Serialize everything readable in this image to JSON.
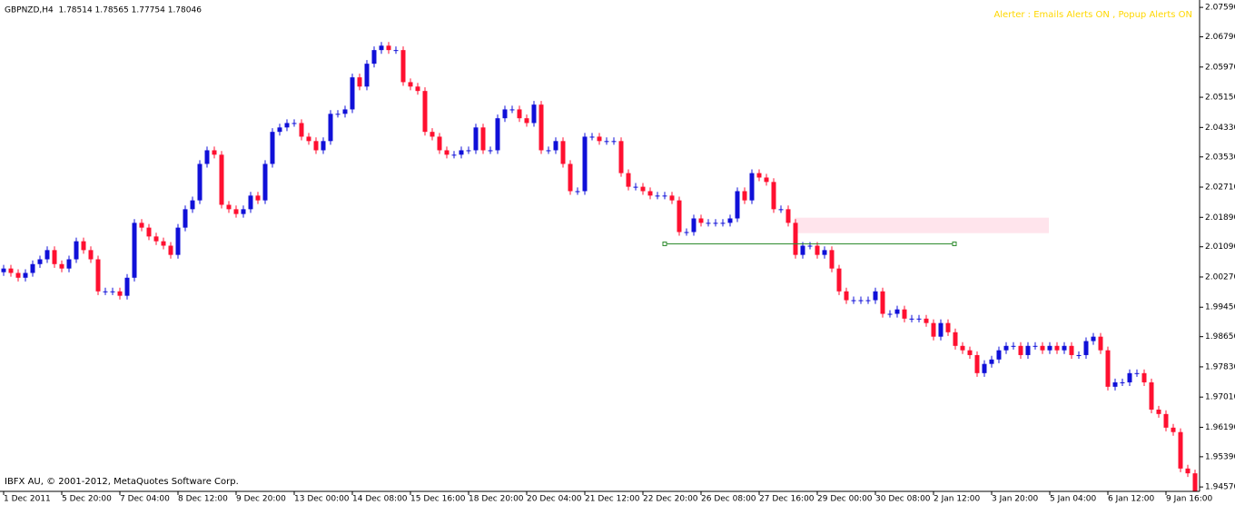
{
  "chart_data": {
    "type": "candlestick",
    "title": "GBPNZD,H4  1.78514 1.78565 1.77754 1.78046",
    "alert_text": "Alerter : Emails Alerts ON , Popup Alerts ON",
    "footer": "IBFX AU, © 2001-2012, MetaQuotes Software Corp.",
    "up_color": "#1010d8",
    "down_color": "#ff1030",
    "ylim": [
      1.9445,
      2.0779
    ],
    "yticks": [
      {
        "value": 2.0759,
        "label": "2.07590"
      },
      {
        "value": 2.0679,
        "label": "2.06790"
      },
      {
        "value": 2.0597,
        "label": "2.05970"
      },
      {
        "value": 2.0515,
        "label": "2.05150"
      },
      {
        "value": 2.0433,
        "label": "2.04330"
      },
      {
        "value": 2.0353,
        "label": "2.03530"
      },
      {
        "value": 2.0271,
        "label": "2.02710"
      },
      {
        "value": 2.0189,
        "label": "2.01890"
      },
      {
        "value": 2.0109,
        "label": "2.01090"
      },
      {
        "value": 2.0027,
        "label": "2.00270"
      },
      {
        "value": 1.9945,
        "label": "1.99450"
      },
      {
        "value": 1.9865,
        "label": "1.98650"
      },
      {
        "value": 1.9783,
        "label": "1.97830"
      },
      {
        "value": 1.9701,
        "label": "1.97010"
      },
      {
        "value": 1.9619,
        "label": "1.96190"
      },
      {
        "value": 1.9539,
        "label": "1.95390"
      },
      {
        "value": 1.9457,
        "label": "1.94570"
      }
    ],
    "categories": [
      "1 Dec 2011",
      null,
      null,
      null,
      null,
      null,
      null,
      null,
      "5 Dec 20:00",
      null,
      null,
      null,
      null,
      null,
      null,
      null,
      "7 Dec 04:00",
      null,
      null,
      null,
      null,
      null,
      null,
      null,
      "8 Dec 12:00",
      null,
      null,
      null,
      null,
      null,
      null,
      null,
      "9 Dec 20:00",
      null,
      null,
      null,
      null,
      null,
      null,
      null,
      "13 Dec 00:00",
      null,
      null,
      null,
      null,
      null,
      null,
      null,
      "14 Dec 08:00",
      null,
      null,
      null,
      null,
      null,
      null,
      null,
      "15 Dec 16:00",
      null,
      null,
      null,
      null,
      null,
      null,
      null,
      "18 Dec 20:00",
      null,
      null,
      null,
      null,
      null,
      null,
      null,
      "20 Dec 04:00",
      null,
      null,
      null,
      null,
      null,
      null,
      null,
      "21 Dec 12:00",
      null,
      null,
      null,
      null,
      null,
      null,
      null,
      "22 Dec 20:00",
      null,
      null,
      null,
      null,
      null,
      null,
      null,
      "26 Dec 08:00",
      null,
      null,
      null,
      null,
      null,
      null,
      null,
      "27 Dec 16:00",
      null,
      null,
      null,
      null,
      null,
      null,
      null,
      "29 Dec 00:00",
      null,
      null,
      null,
      null,
      null,
      null,
      null,
      "30 Dec 08:00",
      null,
      null,
      null,
      null,
      null,
      null,
      null,
      "2 Jan 12:00",
      null,
      null,
      null,
      null,
      null,
      null,
      null,
      "3 Jan 20:00",
      null,
      null,
      null,
      null,
      null,
      null,
      null,
      "5 Jan 04:00",
      null,
      null,
      null,
      null,
      null,
      null,
      null,
      "6 Jan 12:00",
      null,
      null,
      null,
      null,
      null,
      null,
      null,
      "9 Jan 16:00",
      null,
      null,
      null,
      null
    ],
    "open": [
      2.004,
      2.005,
      2.0038,
      2.0025,
      2.0038,
      2.0062,
      2.0075,
      2.01,
      2.0062,
      2.005,
      2.0075,
      2.0124,
      2.01,
      2.0075,
      1.9988,
      1.9988,
      1.9988,
      1.9976,
      2.0025,
      2.0174,
      2.0161,
      2.0137,
      2.0124,
      2.0112,
      2.0087,
      2.0161,
      2.0211,
      2.0235,
      2.0334,
      2.0371,
      2.0359,
      2.0223,
      2.0211,
      2.0198,
      2.0211,
      2.0248,
      2.0235,
      2.0334,
      2.0421,
      2.0433,
      2.0445,
      2.0445,
      2.0408,
      2.0396,
      2.0371,
      2.0396,
      2.047,
      2.047,
      2.0482,
      2.0569,
      2.0544,
      2.0606,
      2.0643,
      2.0655,
      2.0643,
      2.0643,
      2.0556,
      2.0544,
      2.0532,
      2.0421,
      2.0408,
      2.0371,
      2.0359,
      2.0359,
      2.0371,
      2.0371,
      2.0433,
      2.0371,
      2.0371,
      2.0458,
      2.0482,
      2.0482,
      2.0458,
      2.0445,
      2.0495,
      2.0371,
      2.0371,
      2.0396,
      2.0334,
      2.026,
      2.026,
      2.0408,
      2.0408,
      2.0396,
      2.0396,
      2.0396,
      2.0309,
      2.0272,
      2.0272,
      2.026,
      2.0248,
      2.0248,
      2.0248,
      2.0235,
      2.0149,
      2.0149,
      2.0186,
      2.0174,
      2.0174,
      2.0174,
      2.0174,
      2.0186,
      2.026,
      2.0235,
      2.0309,
      2.0297,
      2.0285,
      2.0211,
      2.0211,
      2.0174,
      2.0087,
      2.0112,
      2.0112,
      2.0087,
      2.01,
      2.005,
      1.9988,
      1.9964,
      1.9964,
      1.9964,
      1.9964,
      1.9988,
      1.9927,
      1.9927,
      1.9939,
      1.9914,
      1.9914,
      1.9914,
      1.9902,
      1.9865,
      1.9902,
      1.9877,
      1.984,
      1.9828,
      1.9815,
      1.9766,
      1.9791,
      1.9803,
      1.9828,
      1.984,
      1.984,
      1.9815,
      1.984,
      1.984,
      1.9828,
      1.984,
      1.9828,
      1.984,
      1.9815,
      1.9815,
      1.9853,
      1.9865,
      1.9828,
      1.9729,
      1.9741,
      1.9741,
      1.9766,
      1.9766,
      1.9741,
      1.9667,
      1.9655,
      1.9618,
      1.9606,
      1.9507,
      1.9494
    ],
    "high": [
      2.006,
      2.006,
      2.0048,
      2.0048,
      2.0072,
      2.0085,
      2.011,
      2.011,
      2.0072,
      2.0085,
      2.0134,
      2.0134,
      2.011,
      2.0085,
      1.9998,
      1.9998,
      1.9998,
      2.0035,
      2.0184,
      2.0184,
      2.0171,
      2.0147,
      2.0134,
      2.0122,
      2.0171,
      2.0221,
      2.0245,
      2.0344,
      2.0381,
      2.0381,
      2.0369,
      2.0233,
      2.0221,
      2.0221,
      2.0258,
      2.0258,
      2.0344,
      2.0431,
      2.0443,
      2.0455,
      2.0455,
      2.0455,
      2.0418,
      2.0406,
      2.0406,
      2.048,
      2.048,
      2.0492,
      2.0579,
      2.0579,
      2.0616,
      2.0653,
      2.0665,
      2.0665,
      2.0653,
      2.0653,
      2.0566,
      2.0554,
      2.0542,
      2.0431,
      2.0418,
      2.0381,
      2.0369,
      2.0381,
      2.0381,
      2.0443,
      2.0443,
      2.0381,
      2.0468,
      2.0492,
      2.0492,
      2.0492,
      2.0468,
      2.0505,
      2.0505,
      2.0381,
      2.0406,
      2.0406,
      2.0344,
      2.027,
      2.0418,
      2.0418,
      2.0418,
      2.0406,
      2.0406,
      2.0406,
      2.0319,
      2.0282,
      2.0282,
      2.027,
      2.0258,
      2.0258,
      2.0258,
      2.0245,
      2.0159,
      2.0196,
      2.0196,
      2.0184,
      2.0184,
      2.0184,
      2.0196,
      2.027,
      2.027,
      2.0319,
      2.0319,
      2.0307,
      2.0295,
      2.0221,
      2.0221,
      2.0184,
      2.0122,
      2.0122,
      2.0122,
      2.011,
      2.011,
      2.006,
      1.9998,
      1.9974,
      1.9974,
      1.9974,
      1.9998,
      1.9998,
      1.9937,
      1.9949,
      1.9949,
      1.9924,
      1.9924,
      1.9924,
      1.9912,
      1.9912,
      1.9912,
      1.9887,
      1.985,
      1.9838,
      1.9825,
      1.9801,
      1.9813,
      1.9838,
      1.985,
      1.985,
      1.985,
      1.985,
      1.985,
      1.985,
      1.985,
      1.985,
      1.985,
      1.985,
      1.9825,
      1.9863,
      1.9875,
      1.9875,
      1.9838,
      1.9751,
      1.9751,
      1.9776,
      1.9776,
      1.9776,
      1.9751,
      1.9677,
      1.9665,
      1.9628,
      1.9616,
      1.9517,
      1.9504
    ],
    "low": [
      2.003,
      2.0028,
      2.0015,
      2.0015,
      2.0028,
      2.0052,
      2.0065,
      2.0052,
      2.004,
      2.004,
      2.0065,
      2.009,
      2.0065,
      1.9978,
      1.9978,
      1.9978,
      1.9966,
      1.9966,
      2.0015,
      2.0151,
      2.0127,
      2.0114,
      2.0102,
      2.0077,
      2.0077,
      2.0151,
      2.0201,
      2.0225,
      2.0324,
      2.0349,
      2.0213,
      2.0201,
      2.0188,
      2.0188,
      2.0201,
      2.0225,
      2.0225,
      2.0324,
      2.0411,
      2.0423,
      2.0435,
      2.0398,
      2.0386,
      2.0361,
      2.0361,
      2.0386,
      2.046,
      2.046,
      2.0472,
      2.0534,
      2.0534,
      2.0596,
      2.0633,
      2.0633,
      2.0633,
      2.0546,
      2.0534,
      2.0522,
      2.0411,
      2.0398,
      2.0361,
      2.0349,
      2.0349,
      2.0349,
      2.0361,
      2.0361,
      2.0361,
      2.0361,
      2.0361,
      2.0448,
      2.0472,
      2.0448,
      2.0435,
      2.0435,
      2.0361,
      2.0361,
      2.0361,
      2.0324,
      2.025,
      2.025,
      2.025,
      2.0398,
      2.0386,
      2.0386,
      2.0386,
      2.0299,
      2.0262,
      2.0262,
      2.025,
      2.0238,
      2.0238,
      2.0238,
      2.0225,
      2.0139,
      2.0139,
      2.0139,
      2.0164,
      2.0164,
      2.0164,
      2.0164,
      2.0164,
      2.0176,
      2.0225,
      2.0225,
      2.0287,
      2.0275,
      2.0201,
      2.0201,
      2.0164,
      2.0077,
      2.0077,
      2.0102,
      2.0077,
      2.0077,
      2.004,
      1.9978,
      1.9954,
      1.9954,
      1.9954,
      1.9954,
      1.9954,
      1.9917,
      1.9917,
      1.9917,
      1.9904,
      1.9904,
      1.9904,
      1.9892,
      1.9855,
      1.9855,
      1.9867,
      1.983,
      1.9818,
      1.9805,
      1.9756,
      1.9756,
      1.9781,
      1.9793,
      1.9818,
      1.983,
      1.9805,
      1.9805,
      1.983,
      1.9818,
      1.9818,
      1.9818,
      1.9818,
      1.9805,
      1.9805,
      1.9805,
      1.9843,
      1.9818,
      1.9719,
      1.9719,
      1.9731,
      1.9731,
      1.9756,
      1.9731,
      1.9657,
      1.9645,
      1.9608,
      1.9596,
      1.9497,
      1.9484,
      1.9435
    ],
    "close": [
      2.005,
      2.0038,
      2.0025,
      2.0038,
      2.0062,
      2.0075,
      2.01,
      2.0062,
      2.005,
      2.0075,
      2.0124,
      2.01,
      2.0075,
      1.9988,
      1.9988,
      1.9988,
      1.9976,
      2.0025,
      2.0174,
      2.0161,
      2.0137,
      2.0124,
      2.0112,
      2.0087,
      2.0161,
      2.0211,
      2.0235,
      2.0334,
      2.0371,
      2.0359,
      2.0223,
      2.0211,
      2.0198,
      2.0211,
      2.0248,
      2.0235,
      2.0334,
      2.0421,
      2.0433,
      2.0445,
      2.0445,
      2.0408,
      2.0396,
      2.0371,
      2.0396,
      2.047,
      2.047,
      2.0482,
      2.0569,
      2.0544,
      2.0606,
      2.0643,
      2.0655,
      2.0643,
      2.0643,
      2.0556,
      2.0544,
      2.0532,
      2.0421,
      2.0408,
      2.0371,
      2.0359,
      2.0359,
      2.0371,
      2.0371,
      2.0433,
      2.0371,
      2.0371,
      2.0458,
      2.0482,
      2.0482,
      2.0458,
      2.0445,
      2.0495,
      2.0371,
      2.0371,
      2.0396,
      2.0334,
      2.026,
      2.026,
      2.0408,
      2.0408,
      2.0396,
      2.0396,
      2.0396,
      2.0309,
      2.0272,
      2.0272,
      2.026,
      2.0248,
      2.0248,
      2.0248,
      2.0235,
      2.0149,
      2.0149,
      2.0186,
      2.0174,
      2.0174,
      2.0174,
      2.0174,
      2.0186,
      2.026,
      2.0235,
      2.0309,
      2.0297,
      2.0285,
      2.0211,
      2.0211,
      2.0174,
      2.0087,
      2.0112,
      2.0112,
      2.0087,
      2.01,
      2.005,
      1.9988,
      1.9964,
      1.9964,
      1.9964,
      1.9964,
      1.9988,
      1.9927,
      1.9927,
      1.9939,
      1.9914,
      1.9914,
      1.9914,
      1.9902,
      1.9865,
      1.9902,
      1.9877,
      1.984,
      1.9828,
      1.9815,
      1.9766,
      1.9791,
      1.9803,
      1.9828,
      1.984,
      1.984,
      1.9815,
      1.984,
      1.984,
      1.9828,
      1.984,
      1.9828,
      1.984,
      1.9815,
      1.9815,
      1.9853,
      1.9865,
      1.9828,
      1.9729,
      1.9741,
      1.9741,
      1.9766,
      1.9766,
      1.9741,
      1.9667,
      1.9655,
      1.9618,
      1.9606,
      1.9507,
      1.9494,
      1.9445
    ],
    "objects": {
      "hline": 2.0117,
      "hline_color": "#2e8b2e",
      "rectangle": [
        2.0146,
        2.0188
      ],
      "rectangle_color": "#ffe4ec"
    }
  }
}
